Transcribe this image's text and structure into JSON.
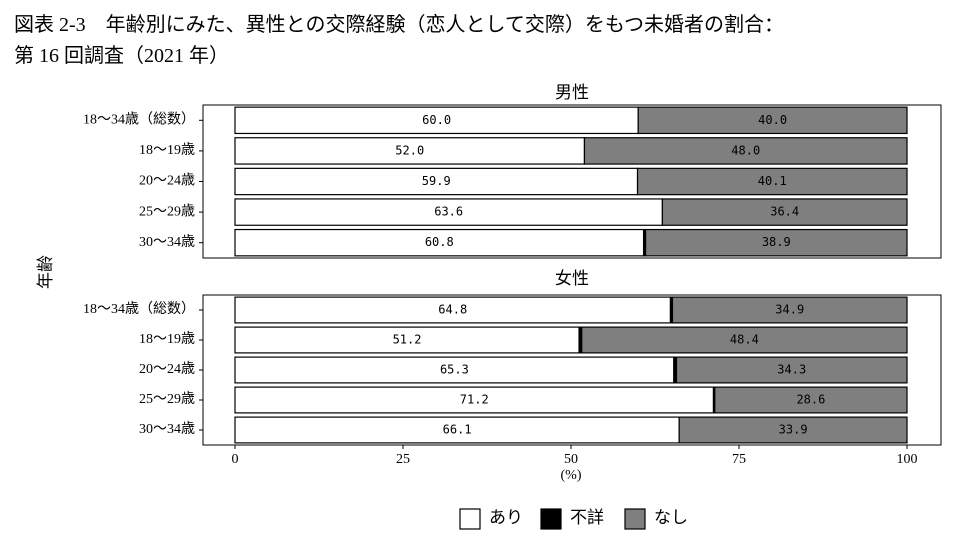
{
  "title_lines": [
    "図表 2-3　年齢別にみた、異性との交際経験（恋人として交際）をもつ未婚者の割合：",
    "第 16 回調査（2021 年）"
  ],
  "y_label": "年齢",
  "chart_data": [
    {
      "type": "bar",
      "orientation": "horizontal",
      "stacked": true,
      "title": "男性",
      "categories": [
        "18～34歳（総数）",
        "18～19歳",
        "20～24歳",
        "25～29歳",
        "30～34歳"
      ],
      "series": [
        {
          "name": "あり",
          "color": "#ffffff",
          "values": [
            60.0,
            52.0,
            59.9,
            63.6,
            60.8
          ],
          "value_labels": [
            "60.0",
            "52.0",
            "59.9",
            "63.6",
            "60.8"
          ]
        },
        {
          "name": "不詳",
          "color": "#000000",
          "values": [
            0,
            0,
            0,
            0,
            0.3
          ]
        },
        {
          "name": "なし",
          "color": "#7f7f7f",
          "values": [
            40.0,
            48.0,
            40.1,
            36.4,
            38.9
          ],
          "value_labels": [
            "40.0",
            "48.0",
            "40.1",
            "36.4",
            "38.9"
          ]
        }
      ],
      "xlim": [
        0,
        100
      ]
    },
    {
      "type": "bar",
      "orientation": "horizontal",
      "stacked": true,
      "title": "女性",
      "categories": [
        "18～34歳（総数）",
        "18～19歳",
        "20～24歳",
        "25～29歳",
        "30～34歳"
      ],
      "series": [
        {
          "name": "あり",
          "color": "#ffffff",
          "values": [
            64.8,
            51.2,
            65.3,
            71.2,
            66.1
          ],
          "value_labels": [
            "64.8",
            "51.2",
            "65.3",
            "71.2",
            "66.1"
          ]
        },
        {
          "name": "不詳",
          "color": "#000000",
          "values": [
            0.3,
            0.4,
            0.4,
            0.2,
            0
          ]
        },
        {
          "name": "なし",
          "color": "#7f7f7f",
          "values": [
            34.9,
            48.4,
            34.3,
            28.6,
            33.9
          ],
          "value_labels": [
            "34.9",
            "48.4",
            "34.3",
            "28.6",
            "33.9"
          ]
        }
      ],
      "xlim": [
        0,
        100
      ],
      "xticks": [
        0,
        25,
        50,
        75,
        100
      ],
      "x_label": "(%)"
    }
  ]
}
